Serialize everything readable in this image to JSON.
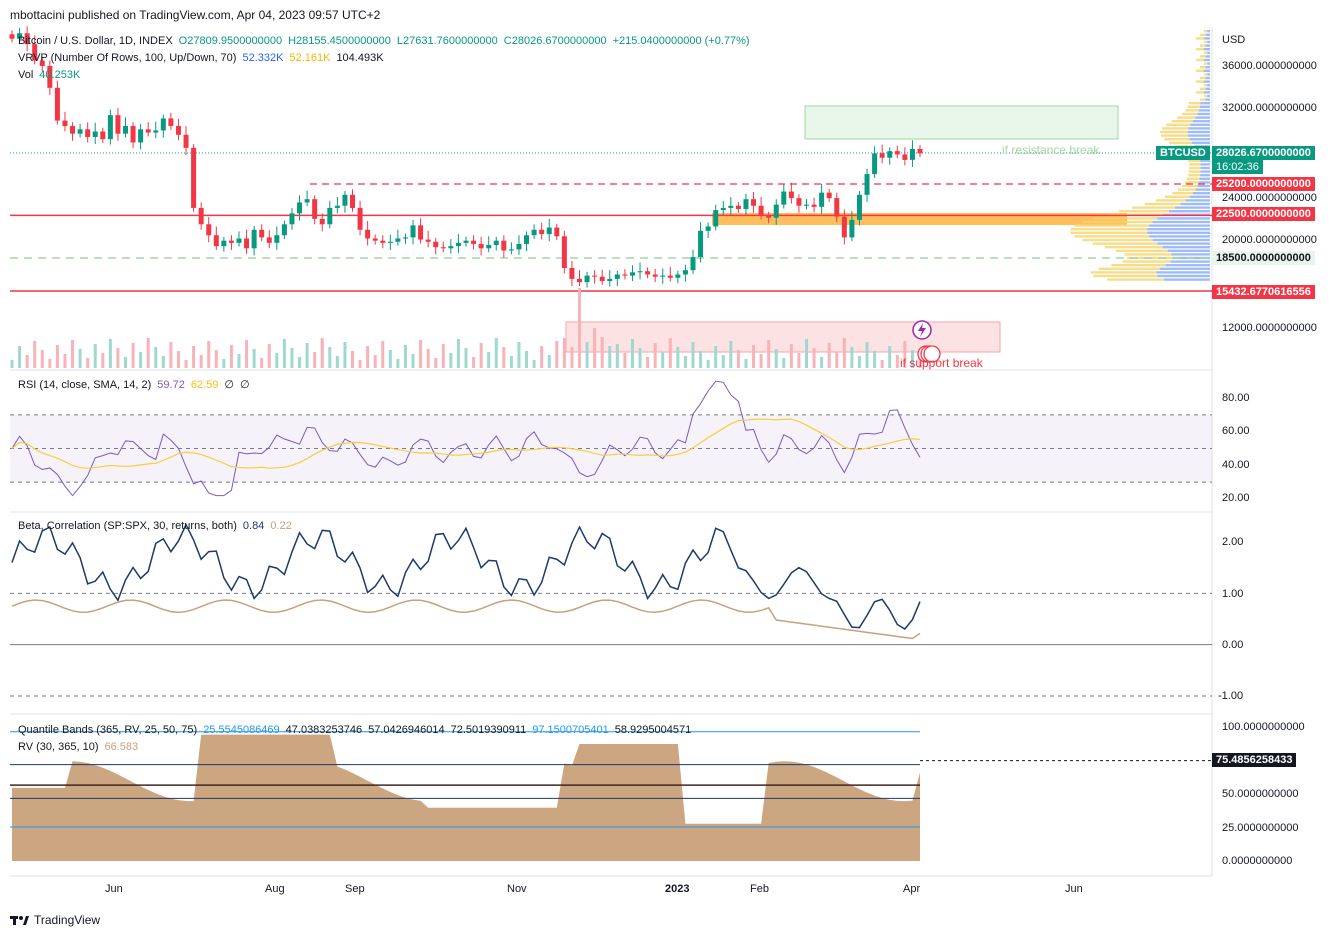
{
  "header": {
    "published": "mbottacini published on TradingView.com, Apr 04, 2023 09:57 UTC+2"
  },
  "main_legend": {
    "symbol": "Bitcoin / U.S. Dollar, 1D, INDEX",
    "o_label": "O",
    "o": "27809.9500000000",
    "h_label": "H",
    "h": "28155.4500000000",
    "l_label": "L",
    "l": "27631.7600000000",
    "c_label": "C",
    "c": "28026.6700000000",
    "change": "+215.0400000000 (+0.77%)"
  },
  "vrvp_legend": {
    "name": "VRVP (Number Of Rows, 100, Up/Down, 70)",
    "v1": "52.332K",
    "v2": "52.161K",
    "v3": "104.493K"
  },
  "vol_legend": {
    "name": "Vol",
    "value": "40.253K"
  },
  "price_axis": {
    "currency": "USD",
    "ticks": [
      "36000.0000000000",
      "32000.0000000000",
      "24000.0000000000",
      "20000.0000000000",
      "12000.0000000000"
    ],
    "tick_values": [
      36000,
      32000,
      24000,
      20000,
      12000
    ]
  },
  "price_tags": {
    "symbol": "BTCUSD",
    "last": "28026.6700000000",
    "countdown": "16:02:36",
    "level_25200": "25200.0000000000",
    "level_22500": "22500.0000000000",
    "level_18500": "18500.0000000000",
    "level_15432": "15432.6770616556"
  },
  "annotations": {
    "resistance": "if resistance break",
    "support": "if support break"
  },
  "rsi_legend": {
    "name": "RSI (14, close, SMA, 14, 2)",
    "rsi": "59.72",
    "sma": "62.59",
    "e1": "∅",
    "e2": "∅"
  },
  "rsi_axis": [
    "80.00",
    "60.00",
    "40.00",
    "20.00"
  ],
  "beta_legend": {
    "name": "Beta, Correlation (SP:SPX, 30, returns, both)",
    "beta": "0.84",
    "corr": "0.22"
  },
  "beta_axis": [
    "2.00",
    "1.00",
    "0.00",
    "-1.00"
  ],
  "qb_legend": {
    "name": "Quantile Bands (365, RV, 25, 50, 75)",
    "v1": "25.5545086469",
    "v2": "47.0383253746",
    "v3": "57.0426946014",
    "v4": "72.5019390911",
    "v5": "97.1500705401",
    "v6": "58.9295004571"
  },
  "rv_legend": {
    "name": "RV (30, 365, 10)",
    "value": "66.583"
  },
  "qb_axis": [
    "100.0000000000",
    "50.0000000000",
    "25.0000000000",
    "0.0000000000"
  ],
  "qb_tag": "75.4856258433",
  "time_axis": [
    "Jun",
    "Aug",
    "Sep",
    "Nov",
    "2023",
    "Feb",
    "Apr",
    "Jun"
  ],
  "footer": {
    "brand": "TradingView"
  },
  "colors": {
    "up": "#089981",
    "down": "#f23645",
    "rsi": "#7e57c2",
    "rsi_sma": "#f4d03f",
    "beta": "#1c3a6b",
    "corr": "#c8a07c",
    "rv_fill": "#c9a07a",
    "support": "#f23645",
    "green_dash": "#a5d6a7"
  },
  "chart_data": {
    "type": "candlestick",
    "series": [
      {
        "name": "Bitcoin / U.S. Dollar",
        "points_close": [
          38500,
          39000,
          38000,
          36500,
          36000,
          34000,
          31000,
          30500,
          29800,
          30200,
          29500,
          30000,
          29300,
          31500,
          29800,
          30500,
          29000,
          30200,
          29900,
          30100,
          31200,
          30500,
          29700,
          28500,
          23000,
          21500,
          20500,
          19500,
          20000,
          19800,
          20200,
          19300,
          21000,
          20300,
          19800,
          20500,
          21500,
          22500,
          23500,
          23800,
          22000,
          21500,
          23000,
          23200,
          24200,
          23000,
          21000,
          20200,
          20000,
          19800,
          19900,
          20200,
          20300,
          21400,
          20100,
          19900,
          19400,
          19300,
          19500,
          19800,
          20000,
          19700,
          19300,
          19600,
          20000,
          19100,
          19200,
          19700,
          20500,
          21000,
          20600,
          21200,
          20400,
          17500,
          16500,
          16200,
          16800,
          16700,
          16300,
          16500,
          16900,
          16800,
          17100,
          17200,
          16900,
          16700,
          16800,
          16600,
          16900,
          17300,
          18500,
          20900,
          21300,
          22800,
          23000,
          23200,
          22900,
          23800,
          23200,
          22300,
          22100,
          23300,
          24500,
          23900,
          23200,
          23300,
          23100,
          24400,
          23900,
          22200,
          20300,
          21900,
          24200,
          26100,
          28000,
          27600,
          28200,
          27900,
          27400,
          28400,
          28000
        ]
      }
    ],
    "levels": [
      25200,
      22500,
      18500,
      15432.6770616556
    ],
    "y_range": [
      10500,
      39500
    ],
    "rsi_range": [
      15,
      95
    ],
    "beta_range": [
      -1.15,
      2.45
    ],
    "qb_range": [
      -5,
      105
    ]
  }
}
